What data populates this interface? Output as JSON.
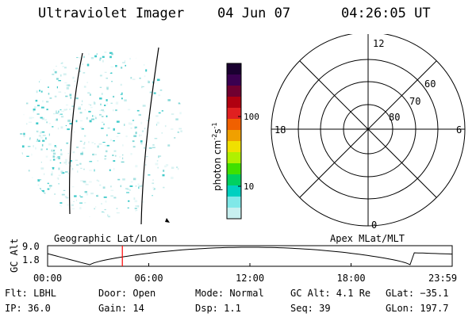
{
  "header": {
    "instrument": "Ultraviolet Imager",
    "date": "04 Jun 07",
    "time": "04:26:05 UT"
  },
  "colorbar": {
    "units": "photon cm",
    "sup1": "-2",
    "mid": "s",
    "sup2": "-1",
    "tick_labels": [
      "100",
      "10"
    ],
    "colors": [
      "#1a0030",
      "#3a0050",
      "#700030",
      "#b00010",
      "#e02020",
      "#f06000",
      "#f0a000",
      "#f0e000",
      "#b0f000",
      "#40e000",
      "#00d060",
      "#00d0c0",
      "#80e8e8",
      "#c8f0f0"
    ]
  },
  "polar_grid": {
    "mlt_labels": {
      "top": "12",
      "left": "18",
      "right": "6",
      "bottom": "0"
    },
    "lat_labels": [
      "60",
      "70",
      "80"
    ]
  },
  "altitude_plot": {
    "left_label": "Geographic Lat/Lon",
    "right_label": "Apex MLat/MLT",
    "ylabel": "GC Alt",
    "ytick_top": "9.0",
    "ytick_bottom": "1.8",
    "xticks": [
      "00:00",
      "06:00",
      "12:00",
      "18:00",
      "23:59"
    ],
    "marker_color": "#ff0000"
  },
  "status": {
    "row1": [
      {
        "key": "flt",
        "text": "Flt: LBHL"
      },
      {
        "key": "door",
        "text": "Door: Open"
      },
      {
        "key": "mode",
        "text": "Mode: Normal"
      },
      {
        "key": "gcalt",
        "text": "GC Alt: 4.1 Re"
      },
      {
        "key": "glat",
        "text": "GLat: −35.1"
      }
    ],
    "row2": [
      {
        "key": "ip",
        "text": "IP: 36.0"
      },
      {
        "key": "gain",
        "text": "Gain: 14"
      },
      {
        "key": "dsp",
        "text": "Dsp:    1.1"
      },
      {
        "key": "seq",
        "text": "Seq: 39"
      },
      {
        "key": "glon",
        "text": "GLon: 197.7"
      }
    ]
  }
}
